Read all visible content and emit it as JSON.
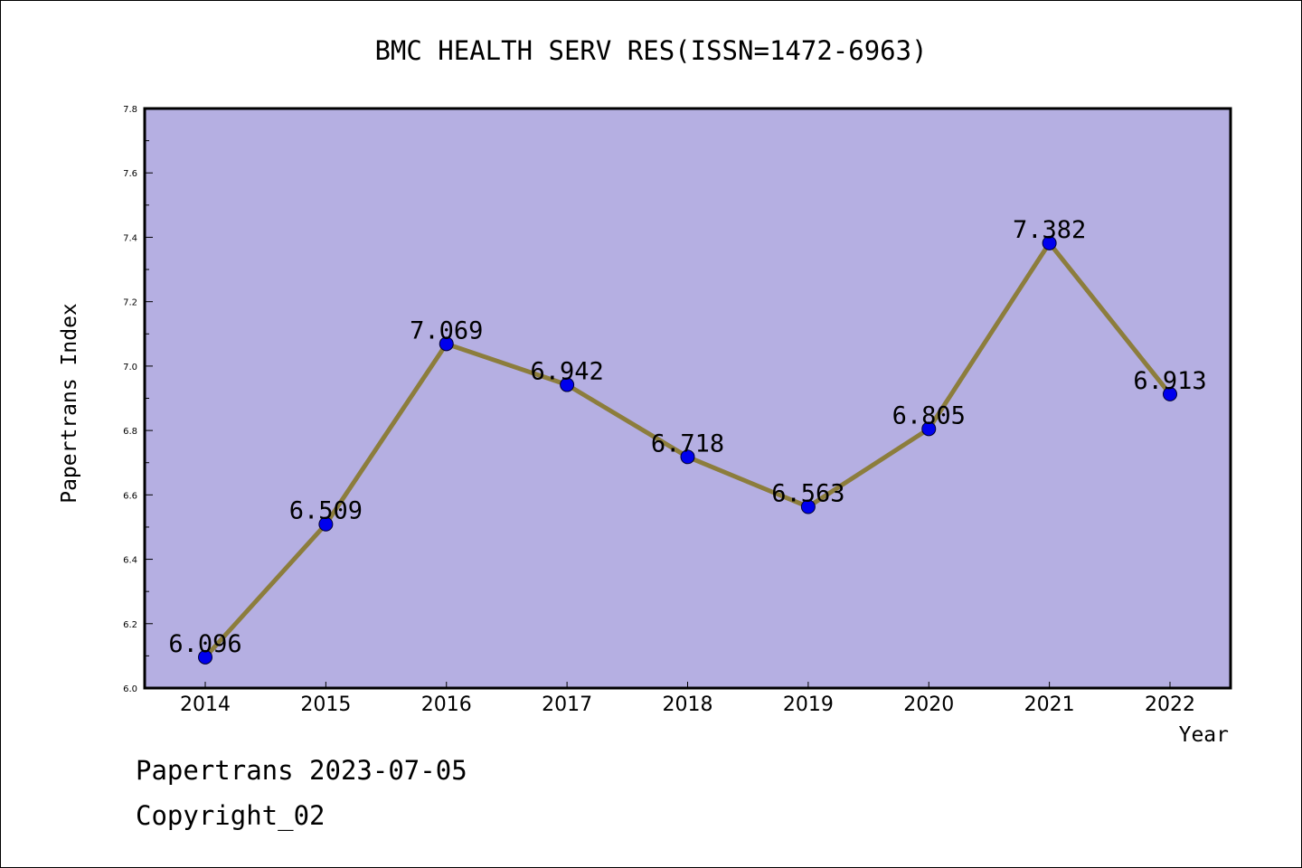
{
  "chart_data": {
    "type": "line",
    "title": "BMC HEALTH SERV RES(ISSN=1472-6963)",
    "xlabel": "Year",
    "ylabel": "Papertrans Index",
    "categories": [
      "2014",
      "2015",
      "2016",
      "2017",
      "2018",
      "2019",
      "2020",
      "2021",
      "2022"
    ],
    "series": [
      {
        "values": [
          6.096,
          6.509,
          7.069,
          6.942,
          6.718,
          6.563,
          6.805,
          7.382,
          6.913
        ]
      }
    ],
    "data_labels": [
      "6.096",
      "6.509",
      "7.069",
      "6.942",
      "6.718",
      "6.563",
      "6.805",
      "7.382",
      "6.913"
    ],
    "ylim": [
      6.0,
      7.8
    ],
    "yticks": [
      "6.0",
      "6.2",
      "6.4",
      "6.6",
      "6.8",
      "7.0",
      "7.2",
      "7.4",
      "7.6",
      "7.8"
    ],
    "grid": false,
    "colors": {
      "plot_background": "#b5afe2",
      "line": "#8c7d3c",
      "marker": "#0000ee"
    }
  },
  "footer": {
    "date_line": "Papertrans 2023-07-05",
    "copyright": "Copyright_02"
  }
}
